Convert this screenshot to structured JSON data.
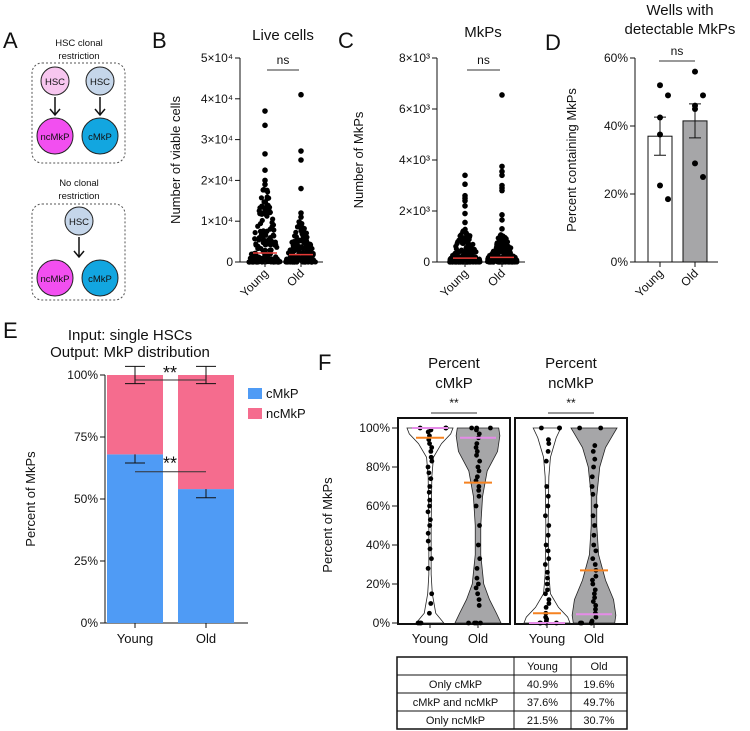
{
  "panels": {
    "A": "A",
    "B": "B",
    "C": "C",
    "D": "D",
    "E": "E",
    "F": "F"
  },
  "diagram": {
    "top_title_1": "HSC clonal",
    "top_title_2": "restriction",
    "bottom_title_1": "No clonal",
    "bottom_title_2": "restriction",
    "hsc": "HSC",
    "ncmkp": "ncMkP",
    "cmkp": "cMkP",
    "colors": {
      "hsc_pink": "#f7c6ef",
      "hsc_blue": "#c5d6ea",
      "ncmkp": "#f24ff0",
      "cmkp": "#12a6e0"
    }
  },
  "chart_data": [
    {
      "id": "B",
      "type": "scatter",
      "title": "Live cells",
      "ylabel": "Number of viable cells",
      "ylim": [
        0,
        50000
      ],
      "yticks": [
        0,
        10000,
        20000,
        30000,
        40000,
        50000
      ],
      "ytick_labels": [
        "0",
        "1×10⁴",
        "2×10⁴",
        "3×10⁴",
        "4×10⁴",
        "5×10⁴"
      ],
      "categories": [
        "Young",
        "Old"
      ],
      "significance": "ns",
      "series": [
        {
          "name": "Young",
          "outliers": [
            37000,
            33500,
            26500,
            22500,
            20000,
            19000
          ],
          "dense_max": 18000,
          "mean": 2200
        },
        {
          "name": "Old",
          "outliers": [
            41000,
            27200,
            25000,
            18000,
            12000,
            11000
          ],
          "dense_max": 10000,
          "mean": 1800
        }
      ]
    },
    {
      "id": "C",
      "type": "scatter",
      "title": "MkPs",
      "ylabel": "Number of MkPs",
      "ylim": [
        0,
        8000
      ],
      "yticks": [
        0,
        2000,
        4000,
        6000,
        8000
      ],
      "ytick_labels": [
        "0",
        "2×10³",
        "4×10³",
        "6×10³",
        "8×10³"
      ],
      "categories": [
        "Young",
        "Old"
      ],
      "significance": "ns",
      "series": [
        {
          "name": "Young",
          "outliers": [
            3400,
            3050,
            2600,
            2500,
            2400,
            2200,
            1900,
            1550
          ],
          "dense_max": 1300,
          "mean": 150
        },
        {
          "name": "Old",
          "outliers": [
            6550,
            3750,
            3550,
            3400,
            3000,
            2900,
            2800,
            1850,
            1650,
            1300
          ],
          "dense_max": 1100,
          "mean": 180
        }
      ]
    },
    {
      "id": "D",
      "type": "bar",
      "title": "Wells with detectable MkPs",
      "title_1": "Wells with",
      "title_2": "detectable MkPs",
      "ylabel": "Percent containing MkPs",
      "ylim": [
        0,
        60
      ],
      "yticks": [
        0,
        20,
        40,
        60
      ],
      "ytick_labels": [
        "0%",
        "20%",
        "40%",
        "60%"
      ],
      "categories": [
        "Young",
        "Old"
      ],
      "significance": "ns",
      "series": [
        {
          "name": "Young",
          "mean": 37,
          "sem": 5.6,
          "points": [
            52,
            49,
            42.5,
            37.5,
            22.5,
            18.5
          ],
          "color": "#ffffff"
        },
        {
          "name": "Old",
          "mean": 41.5,
          "sem": 5,
          "points": [
            56,
            49,
            45,
            46,
            29,
            25
          ],
          "color": "#a6a6a8"
        }
      ]
    },
    {
      "id": "E",
      "type": "bar",
      "stacked": true,
      "title_1": "Input: single HSCs",
      "title_2": "Output: MkP distribution",
      "ylabel": "Percent of MkPs",
      "ylim": [
        0,
        100
      ],
      "yticks": [
        0,
        25,
        50,
        75,
        100
      ],
      "ytick_labels": [
        "0%",
        "25%",
        "50%",
        "75%",
        "100%"
      ],
      "categories": [
        "Young",
        "Old"
      ],
      "significance_top": "**",
      "significance_mid": "**",
      "series": [
        {
          "name": "cMkP",
          "values": [
            68,
            54
          ],
          "err": [
            3.5,
            3.5
          ],
          "color": "#4f9bf5"
        },
        {
          "name": "ncMkP",
          "values": [
            32,
            46
          ],
          "err": [
            3.5,
            3.5
          ],
          "color": "#f56c8e"
        }
      ],
      "legend": "right"
    },
    {
      "id": "F",
      "type": "violin",
      "ylabel": "Percent of MkPs",
      "ylim": [
        0,
        100
      ],
      "yticks": [
        0,
        20,
        40,
        60,
        80,
        100
      ],
      "ytick_labels": [
        "0%",
        "20%",
        "40%",
        "60%",
        "80%",
        "100%"
      ],
      "subplots": [
        {
          "title_1": "Percent",
          "title_2": "cMkP",
          "significance": "**",
          "categories": [
            "Young",
            "Old"
          ],
          "series": [
            {
              "name": "Young",
              "fill": "#ffffff",
              "median": 100,
              "mean": 95,
              "density": [
                [
                  0,
                  0.6
                ],
                [
                  5,
                  0.25
                ],
                [
                  15,
                  0.1
                ],
                [
                  25,
                  0.05
                ],
                [
                  50,
                  0.05
                ],
                [
                  75,
                  0.08
                ],
                [
                  85,
                  0.15
                ],
                [
                  92,
                  0.5
                ],
                [
                  97,
                  0.9
                ],
                [
                  100,
                  1
                ]
              ],
              "points": [
                0,
                0,
                0,
                5,
                10,
                15,
                28,
                33,
                38,
                42,
                46,
                50,
                53,
                57,
                60,
                63,
                67,
                70,
                74,
                77,
                80,
                83,
                85,
                88,
                90,
                92,
                94,
                96,
                98,
                99,
                100,
                100,
                100
              ]
            },
            {
              "name": "Old",
              "fill": "#a6a6a8",
              "median": 95,
              "mean": 72,
              "density": [
                [
                  0,
                  1
                ],
                [
                  5,
                  0.8
                ],
                [
                  12,
                  0.5
                ],
                [
                  20,
                  0.25
                ],
                [
                  35,
                  0.12
                ],
                [
                  50,
                  0.12
                ],
                [
                  65,
                  0.2
                ],
                [
                  78,
                  0.4
                ],
                [
                  88,
                  0.85
                ],
                [
                  96,
                  0.95
                ],
                [
                  100,
                  0.9
                ]
              ],
              "points": [
                0,
                0,
                0,
                0,
                9,
                12,
                15,
                18,
                20,
                23,
                28,
                33,
                40,
                50,
                60,
                65,
                68,
                70,
                73,
                75,
                78,
                80,
                83,
                86,
                88,
                90,
                92,
                95,
                97,
                99,
                100,
                100,
                100
              ]
            }
          ]
        },
        {
          "title_1": "Percent",
          "title_2": "ncMkP",
          "significance": "**",
          "categories": [
            "Young",
            "Old"
          ],
          "series": [
            {
              "name": "Young",
              "fill": "#ffffff",
              "median": 0,
              "mean": 5,
              "density": [
                [
                  0,
                  1
                ],
                [
                  3,
                  0.9
                ],
                [
                  8,
                  0.5
                ],
                [
                  15,
                  0.15
                ],
                [
                  25,
                  0.08
                ],
                [
                  50,
                  0.05
                ],
                [
                  75,
                  0.08
                ],
                [
                  85,
                  0.15
                ],
                [
                  95,
                  0.4
                ],
                [
                  100,
                  0.6
                ]
              ],
              "points": [
                0,
                0,
                0,
                0,
                1,
                2,
                3,
                5,
                8,
                10,
                12,
                15,
                17,
                20,
                23,
                26,
                30,
                33,
                37,
                40,
                45,
                50,
                55,
                60,
                65,
                70,
                83,
                88,
                92,
                94,
                100,
                100,
                100
              ]
            },
            {
              "name": "Old",
              "fill": "#a6a6a8",
              "median": 4.5,
              "mean": 27,
              "density": [
                [
                  0,
                  0.9
                ],
                [
                  4,
                  0.95
                ],
                [
                  12,
                  0.85
                ],
                [
                  22,
                  0.5
                ],
                [
                  35,
                  0.2
                ],
                [
                  50,
                  0.12
                ],
                [
                  65,
                  0.12
                ],
                [
                  80,
                  0.25
                ],
                [
                  90,
                  0.5
                ],
                [
                  97,
                  0.85
                ],
                [
                  100,
                  1
                ]
              ],
              "points": [
                0,
                0,
                0,
                0,
                1,
                3,
                5,
                7,
                9,
                11,
                13,
                15,
                17,
                20,
                22,
                24,
                27,
                30,
                33,
                37,
                40,
                45,
                50,
                55,
                60,
                66,
                70,
                75,
                80,
                84,
                88,
                91,
                100,
                100
              ]
            }
          ]
        }
      ],
      "mean_color": "#f58220",
      "median_color": "#e58be8",
      "table": {
        "headers": [
          "",
          "Young",
          "Old"
        ],
        "rows": [
          [
            "Only cMkP",
            "40.9%",
            "19.6%"
          ],
          [
            "cMkP and ncMkP",
            "37.6%",
            "49.7%"
          ],
          [
            "Only ncMkP",
            "21.5%",
            "30.7%"
          ]
        ]
      }
    }
  ]
}
